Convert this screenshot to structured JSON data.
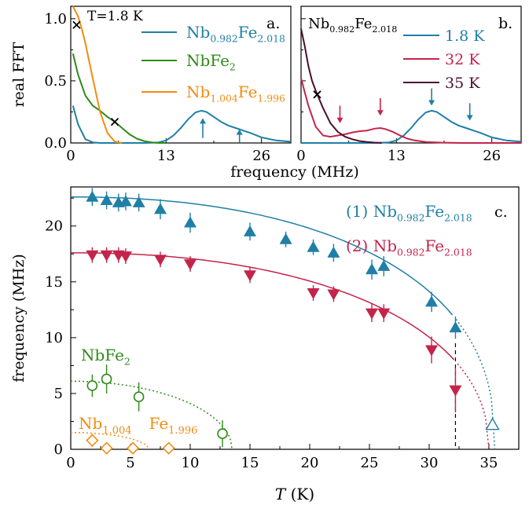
{
  "colors": {
    "blue": "#1f7fa6",
    "green": "#2e8b1a",
    "orange": "#f28c10",
    "crimson": "#c4244a",
    "maroon": "#4a1030",
    "black": "#000000"
  },
  "chart_data": [
    {
      "type": "line",
      "panel_label": "a.",
      "annotation": "T=1.8 K",
      "xlabel": "frequency (MHz)",
      "ylabel": "real FFT",
      "xlim": [
        0,
        30
      ],
      "ylim": [
        0,
        1.1
      ],
      "x_ticks": [
        "0",
        "13",
        "26"
      ],
      "y_ticks": [
        "0.0",
        "0.5",
        "1.0"
      ],
      "legend": [
        {
          "base1": "Nb",
          "sub1": "0.982",
          "base2": "Fe",
          "sub2": "2.018",
          "color": "#1f7fa6"
        },
        {
          "base1": "NbFe",
          "sub1": "2",
          "base2": "",
          "sub2": "",
          "color": "#2e8b1a"
        },
        {
          "base1": "Nb",
          "sub1": "1.004",
          "base2": "Fe",
          "sub2": "1.996",
          "color": "#f28c10"
        }
      ],
      "series": [
        {
          "color": "#1f7fa6",
          "x": [
            0.3,
            1,
            2,
            3,
            4,
            6,
            8,
            10,
            12,
            13,
            14,
            15,
            16,
            17,
            17.8,
            18.5,
            19.5,
            20.5,
            21.5,
            22.5,
            23.5,
            24.5,
            26,
            28,
            30
          ],
          "y": [
            0.3,
            0.15,
            0.03,
            0.005,
            0,
            0,
            0,
            0,
            0.005,
            0.02,
            0.06,
            0.12,
            0.19,
            0.245,
            0.26,
            0.25,
            0.21,
            0.17,
            0.14,
            0.12,
            0.1,
            0.08,
            0.045,
            0.02,
            0.01
          ]
        },
        {
          "color": "#2e8b1a",
          "x": [
            0.3,
            1,
            2,
            3,
            4,
            5,
            6,
            7,
            8,
            9,
            10,
            11,
            12,
            13
          ],
          "y": [
            0.72,
            0.55,
            0.38,
            0.3,
            0.26,
            0.21,
            0.17,
            0.12,
            0.07,
            0.035,
            0.015,
            0.005,
            0,
            0
          ]
        },
        {
          "color": "#f28c10",
          "x": [
            0.3,
            1,
            1.5,
            2,
            3,
            4,
            5,
            6,
            7
          ],
          "y": [
            1.1,
            1.02,
            0.92,
            0.8,
            0.52,
            0.25,
            0.08,
            0.01,
            0
          ]
        }
      ],
      "markers": [
        {
          "x": 0.8,
          "y": 0.95
        },
        {
          "x": 6,
          "y": 0.17
        }
      ],
      "arrows": [
        {
          "x": 18,
          "color": "#1f7fa6",
          "dir": "up",
          "y_from": 0.04,
          "y_to": 0.2
        },
        {
          "x": 23,
          "color": "#1f7fa6",
          "dir": "up",
          "y_from": 0.005,
          "y_to": 0.11
        }
      ]
    },
    {
      "type": "line",
      "panel_label": "b.",
      "xlabel": "",
      "ylabel": "",
      "xlim": [
        0,
        30
      ],
      "ylim": [
        0,
        1.1
      ],
      "x_ticks": [
        "0",
        "13",
        "26"
      ],
      "header": {
        "base1": "Nb",
        "sub1": "0.982",
        "base2": "Fe",
        "sub2": "2.018"
      },
      "legend": [
        {
          "label": "1.8 K",
          "color": "#1f7fa6"
        },
        {
          "label": "32 K",
          "color": "#c4244a"
        },
        {
          "label": "35 K",
          "color": "#4a1030"
        }
      ],
      "series": [
        {
          "color": "#1f7fa6",
          "x": [
            0,
            4,
            8,
            10,
            12,
            13,
            14,
            15,
            16,
            17,
            17.8,
            18.5,
            19.5,
            20.5,
            21.5,
            22.5,
            23.5,
            24.5,
            26,
            28,
            30
          ],
          "y": [
            0,
            0,
            0,
            0,
            0.005,
            0.02,
            0.06,
            0.12,
            0.19,
            0.245,
            0.26,
            0.25,
            0.21,
            0.17,
            0.14,
            0.12,
            0.1,
            0.08,
            0.045,
            0.02,
            0.01
          ]
        },
        {
          "color": "#c4244a",
          "x": [
            0,
            1,
            2,
            3,
            4,
            5,
            6,
            7,
            8,
            9,
            10,
            10.8,
            11.5,
            12.5,
            13.5,
            14.5,
            15.5,
            17,
            19,
            22,
            26,
            30
          ],
          "y": [
            0.52,
            0.3,
            0.13,
            0.06,
            0.05,
            0.06,
            0.07,
            0.085,
            0.095,
            0.1,
            0.115,
            0.12,
            0.112,
            0.09,
            0.06,
            0.035,
            0.02,
            0.008,
            0.003,
            0,
            0,
            0
          ]
        },
        {
          "color": "#4a1030",
          "x": [
            0,
            0.5,
            1,
            1.5,
            2,
            2.5,
            3,
            3.5,
            4,
            5,
            6,
            7,
            8,
            9,
            10,
            11
          ],
          "y": [
            0.92,
            0.78,
            0.62,
            0.5,
            0.42,
            0.35,
            0.28,
            0.22,
            0.16,
            0.09,
            0.05,
            0.03,
            0.015,
            0.008,
            0.003,
            0
          ]
        }
      ],
      "markers": [
        {
          "x": 2.2,
          "y": 0.39
        }
      ],
      "arrows": [
        {
          "x": 5.3,
          "color": "#c4244a",
          "dir": "down",
          "y_from": 0.3,
          "y_to": 0.16
        },
        {
          "x": 10.8,
          "color": "#c4244a",
          "dir": "down",
          "y_from": 0.36,
          "y_to": 0.22
        },
        {
          "x": 17.8,
          "color": "#1f7fa6",
          "dir": "down",
          "y_from": 0.44,
          "y_to": 0.3
        },
        {
          "x": 23,
          "color": "#1f7fa6",
          "dir": "down",
          "y_from": 0.32,
          "y_to": 0.18
        }
      ]
    },
    {
      "type": "scatter",
      "panel_label": "c.",
      "xlabel_italic": "T",
      "xlabel_unit": " (K)",
      "ylabel": "frequency (MHz)",
      "xlim": [
        0,
        37.5
      ],
      "ylim": [
        0,
        23.5
      ],
      "x_ticks": [
        "0",
        "5",
        "10",
        "15",
        "20",
        "25",
        "30",
        "35"
      ],
      "y_ticks": [
        "0",
        "5",
        "10",
        "15",
        "20"
      ],
      "series": [
        {
          "number": "(1)",
          "base1": "Nb",
          "sub1": "0.982",
          "base2": "Fe",
          "sub2": "2.018",
          "color": "#1f7fa6",
          "marker": "triangle-up",
          "x": [
            1.8,
            3,
            4,
            4.6,
            5.7,
            7.5,
            10,
            15,
            18,
            20.3,
            22,
            25.2,
            26.2,
            30.2,
            32.2
          ],
          "y": [
            22.6,
            22.3,
            22.1,
            22.2,
            22.1,
            21.5,
            20.3,
            19.5,
            18.8,
            18.1,
            17.6,
            16.1,
            16.4,
            13.2,
            10.9
          ],
          "err": [
            0.8,
            0.8,
            0.8,
            0.8,
            0.8,
            0.9,
            0.9,
            0.8,
            0.7,
            0.7,
            0.8,
            0.9,
            0.9,
            0.9,
            1.0
          ],
          "open_x": 35.3,
          "open_y": 2.2
        },
        {
          "number": "(2)",
          "base1": "Nb",
          "sub1": "0.982",
          "base2": "Fe",
          "sub2": "2.018",
          "color": "#c4244a",
          "marker": "triangle-down",
          "x": [
            1.8,
            3,
            4,
            4.6,
            7.5,
            10,
            15,
            20.3,
            22,
            25.2,
            26.2,
            30.2,
            32.2
          ],
          "y": [
            17.4,
            17.4,
            17.4,
            17.3,
            17.0,
            16.6,
            15.6,
            14.0,
            13.9,
            12.2,
            12.2,
            8.9,
            5.3
          ],
          "err": [
            0.7,
            0.7,
            0.7,
            0.7,
            0.7,
            0.7,
            0.7,
            0.7,
            0.7,
            0.8,
            0.8,
            1.2,
            2.0
          ]
        },
        {
          "base1": "NbFe",
          "sub1": "2",
          "base2": "",
          "sub2": "",
          "color": "#2e8b1a",
          "marker": "circle-open",
          "x": [
            1.8,
            3,
            5.7,
            12.7
          ],
          "y": [
            5.7,
            6.3,
            4.7,
            1.4
          ],
          "err": [
            1.0,
            1.3,
            1.3,
            1.2
          ]
        },
        {
          "base1": "Nb",
          "sub1": "1.004",
          "base2": "Fe",
          "sub2": "1.996",
          "color": "#f28c10",
          "marker": "diamond-open",
          "x": [
            1.8,
            3,
            5.2,
            8.2
          ],
          "y": [
            0.8,
            0.1,
            0.1,
            0.1
          ],
          "err": [
            0.6,
            0,
            0,
            0
          ]
        }
      ],
      "fit_curves": [
        {
          "color": "#1f7fa6",
          "f0": 22.6,
          "tc": 35.5,
          "a": 2.2,
          "b": 0.4,
          "t_end": 32.2
        },
        {
          "color": "#c4244a",
          "f0": 17.6,
          "tc": 35.0,
          "a": 2.2,
          "b": 0.45,
          "t_end": 32.2
        },
        {
          "color": "#2e8b1a",
          "f0": 6.1,
          "tc": 13.5,
          "a": 2.0,
          "b": 0.5,
          "t_end": 0
        },
        {
          "color": "#f28c10",
          "f0": 1.5,
          "tc": 6.5,
          "a": 2.0,
          "b": 0.5,
          "t_end": 0
        }
      ],
      "vline_x": 32.2
    }
  ]
}
